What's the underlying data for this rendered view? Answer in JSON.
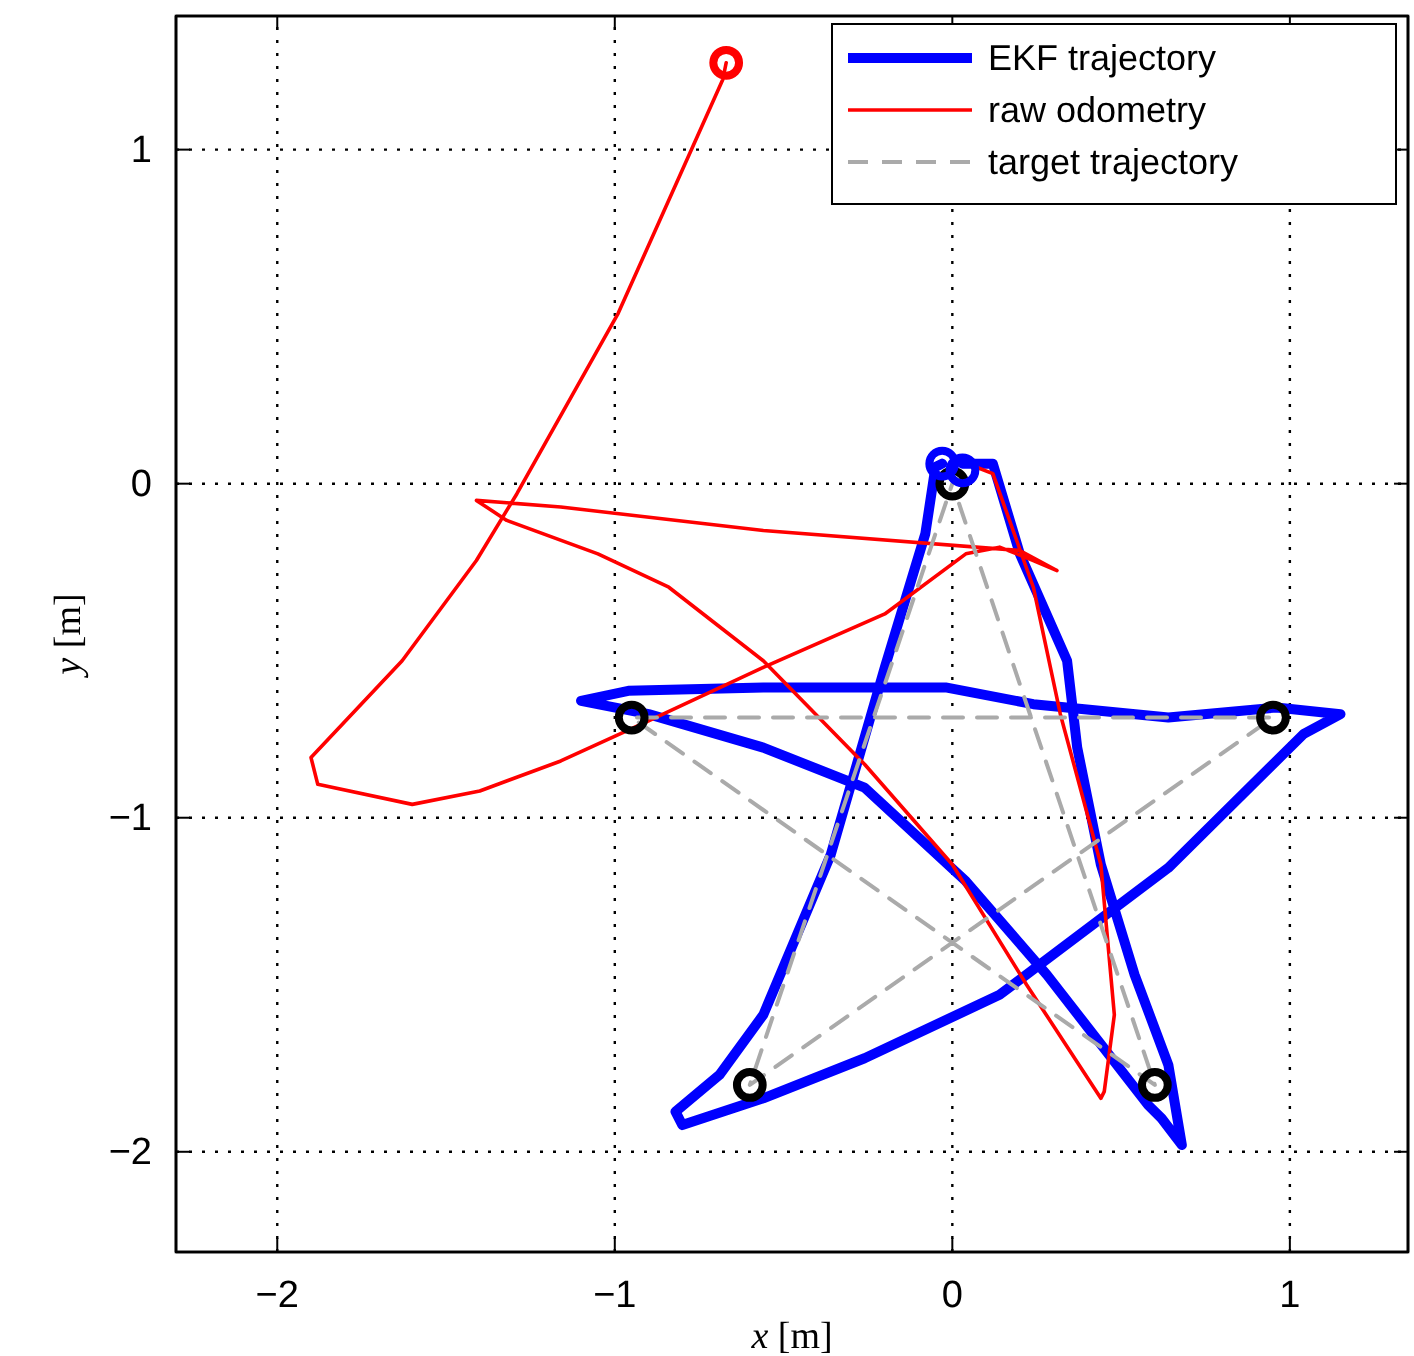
{
  "chart_data": {
    "type": "line",
    "xlabel": "x [m]",
    "ylabel": "y [m]",
    "xlim": [
      -2.3,
      1.35
    ],
    "ylim": [
      -2.3,
      1.4
    ],
    "xticks": [
      {
        "value": -2,
        "label": "−2"
      },
      {
        "value": -1,
        "label": "−1"
      },
      0,
      1
    ],
    "yticks": [
      {
        "value": -2,
        "label": "−2"
      },
      {
        "value": -1,
        "label": "−1"
      },
      0,
      1
    ],
    "grid": true,
    "legend": "top right",
    "series": [
      {
        "name": "EKF trajectory",
        "color": "#0000ff",
        "line_style": "solid",
        "marker": "none",
        "x": [
          0.03,
          0.12,
          0.2,
          0.34,
          0.37,
          0.44,
          0.54,
          0.64,
          0.68,
          0.62,
          0.58,
          0.28,
          0.04,
          -0.26,
          -0.56,
          -0.9,
          -1.1,
          -0.96,
          -0.56,
          -0.02,
          0.24,
          0.64,
          0.96,
          1.15,
          1.04,
          0.64,
          0.14,
          -0.26,
          -0.56,
          -0.8,
          -0.82,
          -0.69,
          -0.56,
          -0.36,
          -0.2,
          -0.08,
          -0.05,
          -0.03
        ],
        "values": [
          0.06,
          0.06,
          -0.21,
          -0.53,
          -0.79,
          -1.14,
          -1.47,
          -1.74,
          -1.98,
          -1.9,
          -1.86,
          -1.47,
          -1.19,
          -0.91,
          -0.79,
          -0.69,
          -0.65,
          -0.62,
          -0.61,
          -0.61,
          -0.66,
          -0.7,
          -0.67,
          -0.69,
          -0.75,
          -1.15,
          -1.53,
          -1.72,
          -1.84,
          -1.92,
          -1.88,
          -1.77,
          -1.59,
          -1.11,
          -0.55,
          -0.15,
          0.05,
          0.06
        ]
      },
      {
        "name": "raw odometry",
        "color": "#ff0000",
        "line_style": "solid",
        "marker": "none",
        "x": [
          -0.67,
          -0.68,
          -0.99,
          -1.29,
          -1.41,
          -1.63,
          -1.9,
          -1.88,
          -1.6,
          -1.4,
          -1.16,
          -0.9,
          -0.56,
          -0.2,
          0.04,
          0.14,
          0.24,
          0.31,
          0.2,
          -0.56,
          -1.16,
          -1.41,
          -1.32,
          -1.05,
          -0.84,
          -0.56,
          -0.26,
          0.0,
          0.22,
          0.44,
          0.45,
          0.48,
          0.44,
          0.32,
          0.24,
          0.12,
          0.07
        ],
        "values": [
          1.26,
          1.21,
          0.51,
          -0.03,
          -0.23,
          -0.53,
          -0.82,
          -0.9,
          -0.96,
          -0.92,
          -0.83,
          -0.71,
          -0.55,
          -0.39,
          -0.21,
          -0.19,
          -0.23,
          -0.26,
          -0.2,
          -0.14,
          -0.07,
          -0.05,
          -0.11,
          -0.21,
          -0.31,
          -0.53,
          -0.84,
          -1.14,
          -1.5,
          -1.84,
          -1.82,
          -1.59,
          -1.14,
          -0.69,
          -0.31,
          0.03,
          0.05
        ]
      },
      {
        "name": "target trajectory",
        "color": "#aaaaaa",
        "line_style": "dashed",
        "marker": "none",
        "x": [
          0.02,
          0.6,
          -0.95,
          0.95,
          -0.6,
          0
        ],
        "values": [
          -0.06,
          -1.8,
          -0.7,
          -0.7,
          -1.8,
          0
        ]
      },
      {
        "type": "scatter",
        "color": "#000000",
        "marker": "circle",
        "x": [
          0,
          0.6,
          -0.95,
          0.95,
          -0.6
        ],
        "values": [
          0,
          -1.8,
          -0.7,
          -0.7,
          -1.8
        ]
      },
      {
        "type": "scatter",
        "color": "#0000ff",
        "marker": "circle",
        "x": [
          -0.03,
          0.03
        ],
        "values": [
          0.06,
          0.04
        ]
      },
      {
        "type": "scatter",
        "color": "#ff0000",
        "marker": "circle",
        "x": [
          -0.67
        ],
        "values": [
          1.26
        ]
      }
    ]
  }
}
